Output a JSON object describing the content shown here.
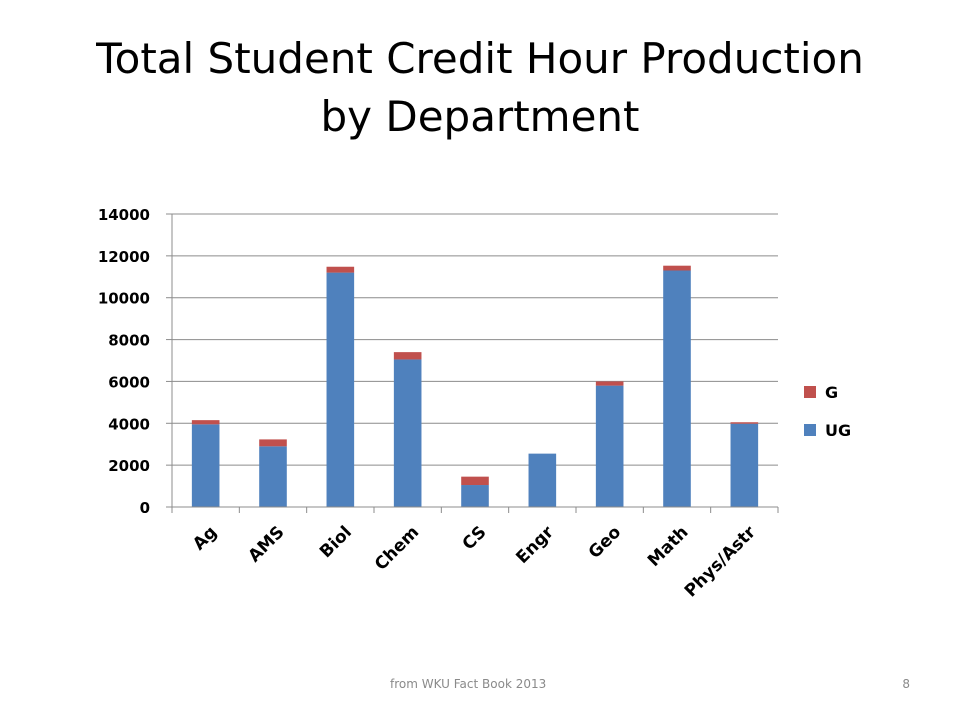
{
  "slide": {
    "title_line1": "Total Student Credit Hour Production",
    "title_line2": "by Department",
    "footer_source": "from WKU Fact Book 2013",
    "page_number": "8"
  },
  "chart_data": {
    "type": "bar",
    "stacked": true,
    "categories": [
      "Ag",
      "AMS",
      "Biol",
      "Chem",
      "CS",
      "Engr",
      "Geo",
      "Math",
      "Phys/Astr"
    ],
    "series": [
      {
        "name": "UG",
        "color": "#4F81BD",
        "values": [
          3950,
          2900,
          11200,
          7050,
          1050,
          2550,
          5800,
          11300,
          3980
        ]
      },
      {
        "name": "G",
        "color": "#C0504D",
        "values": [
          200,
          330,
          280,
          350,
          400,
          0,
          200,
          230,
          70
        ]
      }
    ],
    "yticks": [
      0,
      2000,
      4000,
      6000,
      8000,
      10000,
      12000,
      14000
    ],
    "ylim": [
      0,
      14000
    ],
    "grid": true,
    "legend_position": "right",
    "legend_order": [
      "G",
      "UG"
    ],
    "xlabel": "",
    "ylabel": ""
  }
}
